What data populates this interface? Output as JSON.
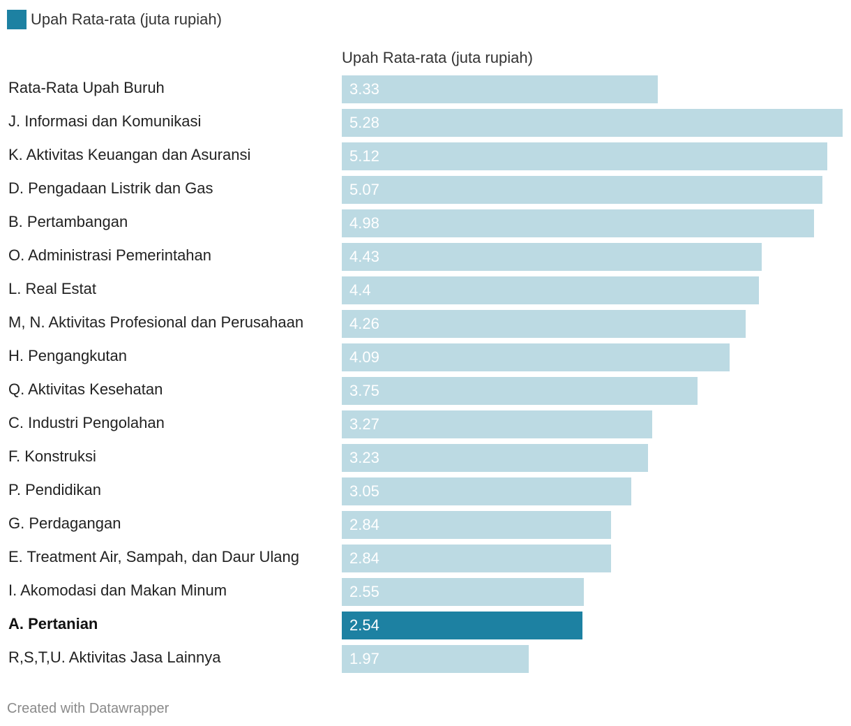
{
  "legend": {
    "label": "Upah Rata-rata (juta rupiah)"
  },
  "footer": {
    "credit": "Created with Datawrapper"
  },
  "colors": {
    "highlight": "#1d81a2",
    "base": "#bcdae3",
    "text": "#333333"
  },
  "chart_data": {
    "type": "bar",
    "orientation": "horizontal",
    "column_header": "Upah Rata-rata (juta rupiah)",
    "xlim": [
      0,
      5.28
    ],
    "categories": [
      "Rata-Rata Upah Buruh",
      "J. Informasi dan Komunikasi",
      "K. Aktivitas Keuangan dan Asuransi",
      "D. Pengadaan Listrik dan Gas",
      "B. Pertambangan",
      "O. Administrasi Pemerintahan",
      "L. Real Estat",
      "M, N. Aktivitas Profesional dan Perusahaan",
      "H. Pengangkutan",
      "Q. Aktivitas Kesehatan",
      "C. Industri Pengolahan",
      "F. Konstruksi",
      "P. Pendidikan",
      "G. Perdagangan",
      "E. Treatment Air, Sampah, dan Daur Ulang",
      "I. Akomodasi dan Makan Minum",
      "A. Pertanian",
      "R,S,T,U. Aktivitas Jasa Lainnya"
    ],
    "values": [
      3.33,
      5.28,
      5.12,
      5.07,
      4.98,
      4.43,
      4.4,
      4.26,
      4.09,
      3.75,
      3.27,
      3.23,
      3.05,
      2.84,
      2.84,
      2.55,
      2.54,
      1.97
    ],
    "value_labels": [
      "3.33",
      "5.28",
      "5.12",
      "5.07",
      "4.98",
      "4.43",
      "4.4",
      "4.26",
      "4.09",
      "3.75",
      "3.27",
      "3.23",
      "3.05",
      "2.84",
      "2.84",
      "2.55",
      "2.54",
      "1.97"
    ],
    "highlighted": [
      "A. Pertanian"
    ],
    "series": [
      {
        "name": "Upah Rata-rata (juta rupiah)",
        "color": "#1d81a2"
      }
    ]
  }
}
